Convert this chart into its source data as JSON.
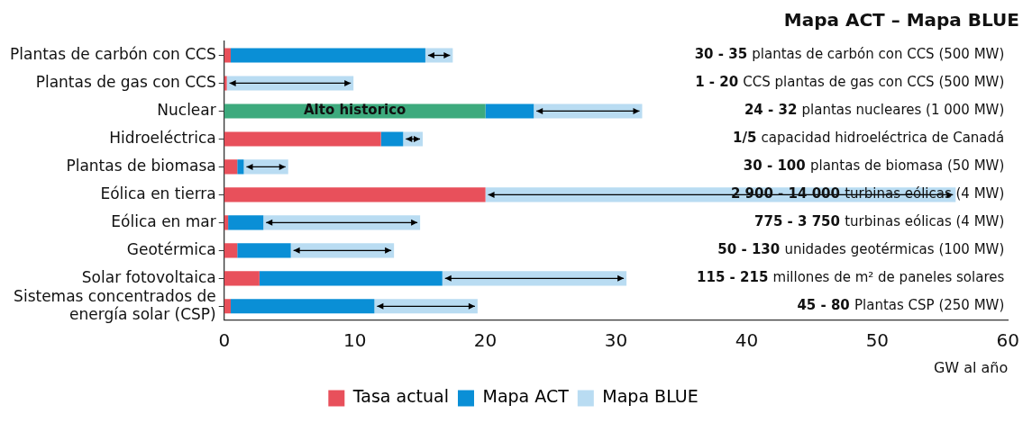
{
  "chart_data": {
    "type": "bar",
    "orientation": "horizontal",
    "stacked": true,
    "title": "Mapa ACT – Mapa BLUE",
    "xlabel": "GW al año",
    "categories": [
      "Plantas de carbón con CCS",
      "Plantas de gas con CCS",
      "Nuclear",
      "Hidroeléctrica",
      "Plantas de biomasa",
      "Eólica en tierra",
      "Eólica en mar",
      "Geotérmica",
      "Solar fotovoltaica",
      "Sistemas concentrados de energía solar (CSP)"
    ],
    "series": [
      {
        "name": "Tasa actual",
        "color": "#e8505b",
        "colors": [
          "#e8505b",
          "#e8505b",
          "#3daa7d",
          "#e8505b",
          "#e8505b",
          "#e8505b",
          "#e8505b",
          "#e8505b",
          "#e8505b",
          "#e8505b"
        ],
        "values": [
          0.5,
          0.2,
          20,
          12,
          1,
          20,
          0.3,
          1,
          2.7,
          0.5
        ]
      },
      {
        "name": "Mapa ACT",
        "color": "#0a8fd6",
        "values": [
          14.9,
          null,
          3.7,
          1.7,
          0.5,
          null,
          2.7,
          4.1,
          14,
          11
        ]
      },
      {
        "name": "Mapa BLUE",
        "color": "#b9dcf2",
        "values": [
          2.1,
          9.7,
          8.3,
          1.5,
          3.4,
          36,
          12,
          7.9,
          14.1,
          7.9
        ]
      }
    ],
    "xlim": [
      0,
      60
    ],
    "xticks": [
      0,
      10,
      20,
      30,
      40,
      50,
      60
    ],
    "grid": false,
    "legend": "bottom",
    "annotations": [
      "30 - 35 plantas de carbón con CCS (500 MW)",
      "1 - 20 CCS plantas de gas con CCS (500 MW)",
      "24 - 32 plantas nucleares (1 000 MW)",
      "1/5 capacidad hidroeléctrica de Canadá",
      "30 - 100 plantas de biomasa (50 MW)",
      "2 900 - 14 000 turbinas eólicas (4 MW)",
      "775 - 3 750 turbinas eólicas (4 MW)",
      "50 - 130 unidades geotérmicas (100 MW)",
      "115 - 215 millones de m² de paneles solares",
      "45 - 80 Plantas CSP (250 MW)",
      {
        "text": "Alto historico",
        "x": 10,
        "y": "Nuclear"
      }
    ]
  }
}
